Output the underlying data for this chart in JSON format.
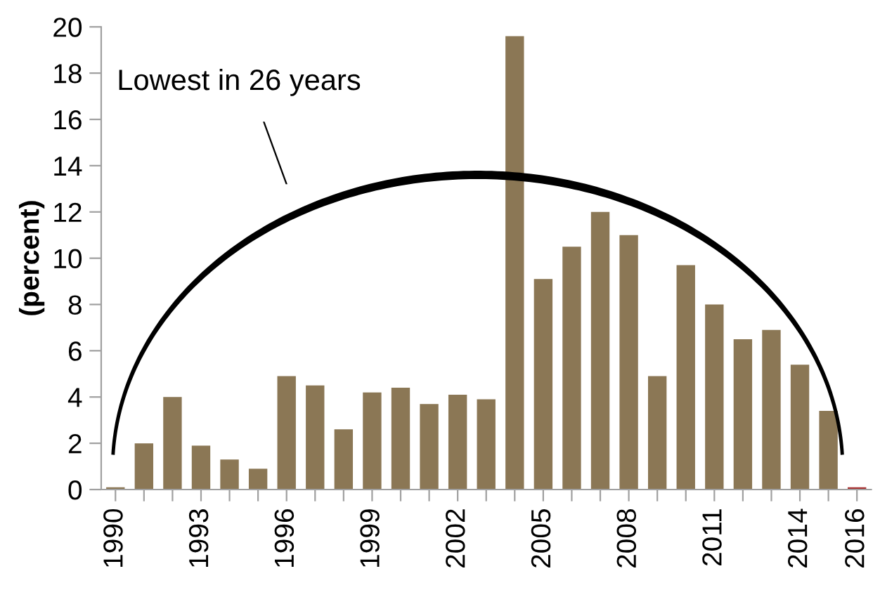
{
  "chart_data": {
    "type": "bar",
    "ylabel": "(percent)",
    "categories": [
      "1990",
      null,
      null,
      "1993",
      null,
      null,
      "1996",
      null,
      null,
      "1999",
      null,
      null,
      "2002",
      null,
      null,
      "2005",
      null,
      null,
      "2008",
      null,
      null,
      "2011",
      null,
      null,
      "2014",
      null,
      "2016"
    ],
    "values": [
      0.1,
      2.0,
      4.0,
      1.9,
      1.3,
      0.9,
      4.9,
      4.5,
      2.6,
      4.2,
      4.4,
      3.7,
      4.1,
      3.9,
      19.6,
      9.1,
      10.5,
      12.0,
      11.0,
      4.9,
      9.7,
      8.0,
      6.5,
      6.9,
      5.4,
      3.4,
      0.1
    ],
    "colors": [
      "#8b7755",
      "#8b7755",
      "#8b7755",
      "#8b7755",
      "#8b7755",
      "#8b7755",
      "#8b7755",
      "#8b7755",
      "#8b7755",
      "#8b7755",
      "#8b7755",
      "#8b7755",
      "#8b7755",
      "#8b7755",
      "#8b7755",
      "#8b7755",
      "#8b7755",
      "#8b7755",
      "#8b7755",
      "#8b7755",
      "#8b7755",
      "#8b7755",
      "#8b7755",
      "#8b7755",
      "#8b7755",
      "#8b7755",
      "#a83232"
    ],
    "ylim": [
      0,
      20
    ],
    "yticks": [
      0,
      2,
      4,
      6,
      8,
      10,
      12,
      14,
      16,
      18,
      20
    ],
    "grid": false,
    "legend": false,
    "annotations": [
      "Lowest in 26 years"
    ]
  }
}
